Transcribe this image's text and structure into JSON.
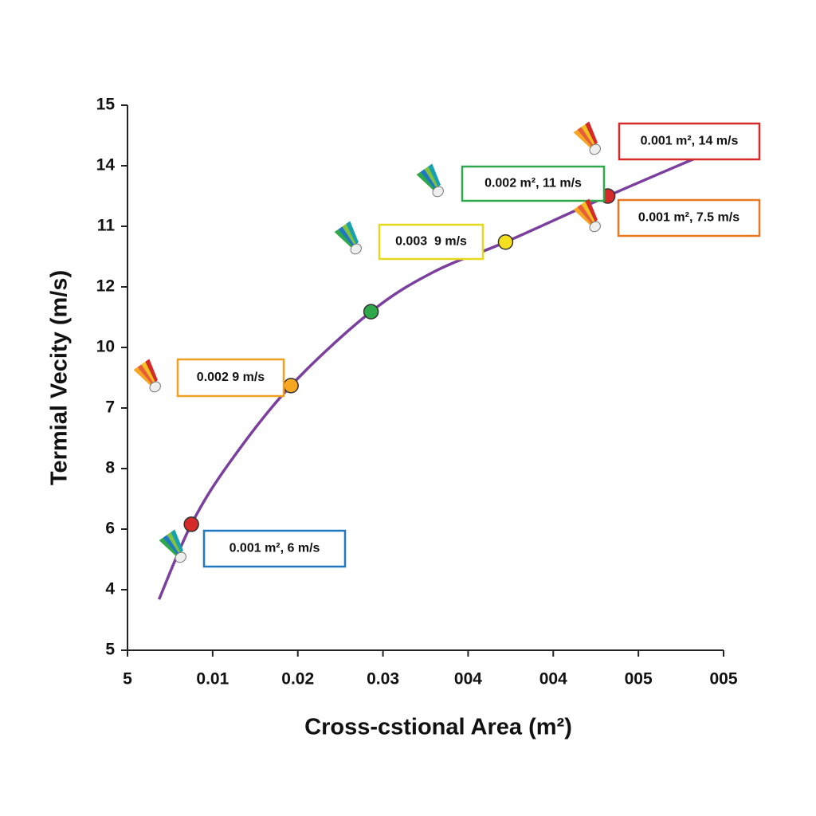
{
  "chart_data": {
    "type": "line",
    "xlabel": "Cross-cstional Area (m²)",
    "ylabel": "Termial Vecity (m/s)",
    "xlim": [
      0,
      0.07
    ],
    "xticks": [
      {
        "value": 0,
        "label": "5"
      },
      0.01,
      0.02,
      0.03,
      {
        "value": 0.04,
        "label": "004"
      },
      {
        "value": 0.05,
        "label": "004"
      },
      {
        "value": 0.06,
        "label": "005"
      },
      {
        "value": 0.07,
        "label": "005"
      }
    ],
    "ylim": [
      0,
      9
    ],
    "yticks": [
      {
        "value": 0,
        "label": "5"
      },
      {
        "value": 1,
        "label": "4"
      },
      {
        "value": 2,
        "label": "6"
      },
      {
        "value": 3,
        "label": "8"
      },
      {
        "value": 4,
        "label": "7"
      },
      {
        "value": 5,
        "label": "10"
      },
      {
        "value": 6,
        "label": "12"
      },
      {
        "value": 7,
        "label": "11"
      },
      {
        "value": 8,
        "label": "14"
      },
      {
        "value": 9,
        "label": "15"
      }
    ],
    "series": [
      {
        "color": "#7b3f9e",
        "x": [
          0.0037,
          0.0075,
          0.012,
          0.0192,
          0.0286,
          0.036,
          0.0444,
          0.0564,
          0.0668
        ],
        "values": [
          0.84,
          2.08,
          3.1,
          4.37,
          5.59,
          6.25,
          6.74,
          7.5,
          8.13
        ]
      }
    ],
    "points": {
      "x": [
        0.0075,
        0.0192,
        0.0286,
        0.0444,
        0.0564
      ],
      "values": [
        2.08,
        4.37,
        5.59,
        6.74,
        7.5
      ],
      "colors": [
        "#d62a2a",
        "#f5a623",
        "#2ea84a",
        "#f5e020",
        "#d62a2a"
      ]
    },
    "annotations": [
      {
        "text": "0.001 m², 14 m/s",
        "color": "#d62a2a"
      },
      {
        "text": "0.002 m², 11 m/s",
        "color": "#2ea84a"
      },
      {
        "text": "0.003  9 m/s",
        "color": "#e6d81c"
      },
      {
        "text": "0.002 9 m/s",
        "color": "#f0a020"
      },
      {
        "text": "0.001 m², 7.5 m/s",
        "color": "#e87722"
      },
      {
        "text": "0.001 m², 6 m/s",
        "color": "#1f78c1"
      }
    ]
  }
}
